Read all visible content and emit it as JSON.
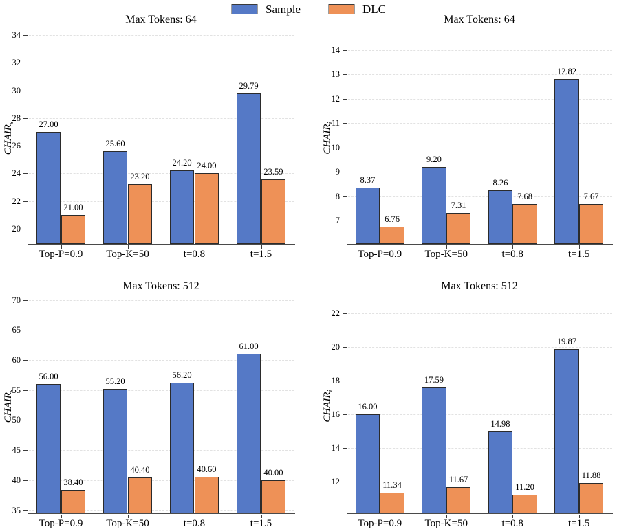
{
  "legend": {
    "items": [
      {
        "label": "Sample",
        "color": "#5579C6"
      },
      {
        "label": "DLC",
        "color": "#EE9157"
      }
    ]
  },
  "colors": {
    "sample_fill": "#5579C6",
    "dlc_fill": "#EE9157",
    "bar_edge": "#2b2b2b",
    "grid": "#e2e2e2",
    "spine": "#3c3c3c"
  },
  "chart_data": [
    {
      "type": "bar",
      "title": "Max Tokens: 64",
      "ylabel_base": "CHAIR",
      "ylabel_sub": "s",
      "categories": [
        "Top-P=0.9",
        "Top-K=50",
        "t=0.8",
        "t=1.5"
      ],
      "yticks": [
        20,
        22,
        24,
        26,
        28,
        30,
        32,
        34
      ],
      "ylim": [
        18.9,
        34.25
      ],
      "grid": true,
      "series": [
        {
          "name": "Sample",
          "color": "#5579C6",
          "values": [
            27.0,
            25.6,
            24.2,
            29.79
          ],
          "labels": [
            "27.00",
            "25.60",
            "24.20",
            "29.79"
          ]
        },
        {
          "name": "DLC",
          "color": "#EE9157",
          "values": [
            21.0,
            23.2,
            24.0,
            23.59
          ],
          "labels": [
            "21.00",
            "23.20",
            "24.00",
            "23.59"
          ]
        }
      ]
    },
    {
      "type": "bar",
      "title": "Max Tokens: 64",
      "ylabel_base": "CHAIR",
      "ylabel_sub": "i",
      "categories": [
        "Top-P=0.9",
        "Top-K=50",
        "t=0.8",
        "t=1.5"
      ],
      "yticks": [
        7,
        8,
        9,
        10,
        11,
        12,
        13,
        14
      ],
      "ylim": [
        6.05,
        14.75
      ],
      "grid": true,
      "series": [
        {
          "name": "Sample",
          "color": "#5579C6",
          "values": [
            8.37,
            9.2,
            8.26,
            12.82
          ],
          "labels": [
            "8.37",
            "9.20",
            "8.26",
            "12.82"
          ]
        },
        {
          "name": "DLC",
          "color": "#EE9157",
          "values": [
            6.76,
            7.31,
            7.68,
            7.67
          ],
          "labels": [
            "6.76",
            "7.31",
            "7.68",
            "7.67"
          ]
        }
      ]
    },
    {
      "type": "bar",
      "title": "Max Tokens: 512",
      "ylabel_base": "CHAIR",
      "ylabel_sub": "s",
      "categories": [
        "Top-P=0.9",
        "Top-K=50",
        "t=0.8",
        "t=1.5"
      ],
      "yticks": [
        35,
        40,
        45,
        50,
        55,
        60,
        65,
        70
      ],
      "ylim": [
        34.5,
        70.3
      ],
      "grid": true,
      "series": [
        {
          "name": "Sample",
          "color": "#5579C6",
          "values": [
            56.0,
            55.2,
            56.2,
            61.0
          ],
          "labels": [
            "56.00",
            "55.20",
            "56.20",
            "61.00"
          ]
        },
        {
          "name": "DLC",
          "color": "#EE9157",
          "values": [
            38.4,
            40.4,
            40.6,
            40.0
          ],
          "labels": [
            "38.40",
            "40.40",
            "40.60",
            "40.00"
          ]
        }
      ]
    },
    {
      "type": "bar",
      "title": "Max Tokens: 512",
      "ylabel_base": "CHAIR",
      "ylabel_sub": "i",
      "categories": [
        "Top-P=0.9",
        "Top-K=50",
        "t=0.8",
        "t=1.5"
      ],
      "yticks": [
        12,
        14,
        16,
        18,
        20,
        22
      ],
      "ylim": [
        10.1,
        22.9
      ],
      "grid": true,
      "series": [
        {
          "name": "Sample",
          "color": "#5579C6",
          "values": [
            16.0,
            17.59,
            14.98,
            19.87
          ],
          "labels": [
            "16.00",
            "17.59",
            "14.98",
            "19.87"
          ]
        },
        {
          "name": "DLC",
          "color": "#EE9157",
          "values": [
            11.34,
            11.67,
            11.2,
            11.88
          ],
          "labels": [
            "11.34",
            "11.67",
            "11.20",
            "11.88"
          ]
        }
      ]
    }
  ]
}
